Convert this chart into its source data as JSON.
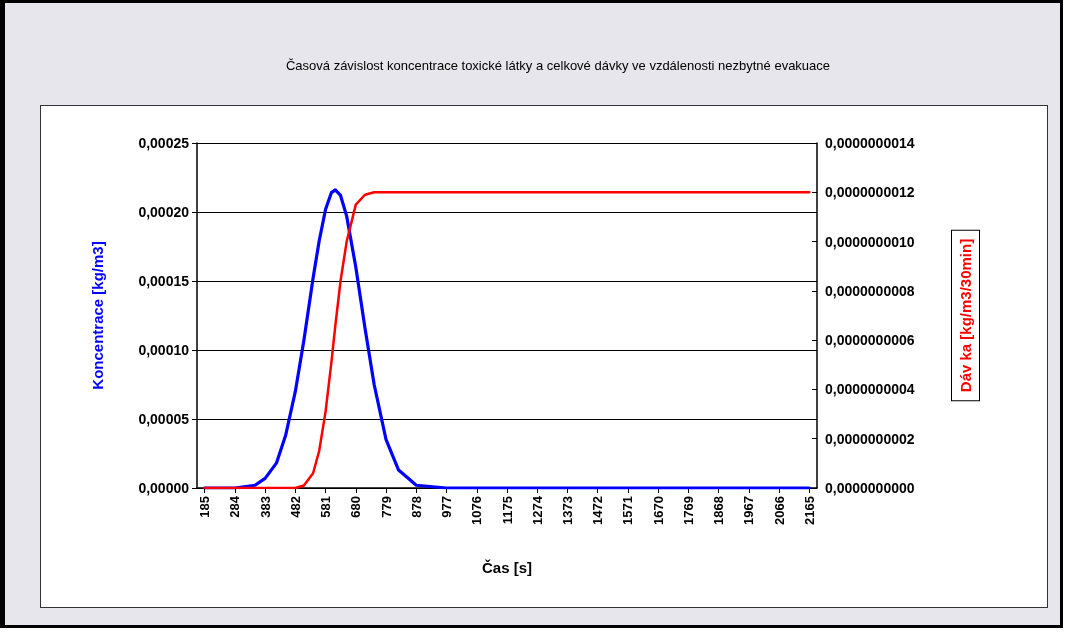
{
  "chart_data": {
    "type": "line",
    "title": "Časová závislost koncentrace toxické látky a celkové dávky ve vzdálenosti nezbytné evakuace",
    "xlabel": "Čas [s]",
    "ylabel": "Koncentrace [kg/m3]",
    "y2label": "Dáv ka [kg/m3/30min]",
    "x": [
      185,
      284,
      350,
      383,
      420,
      450,
      482,
      510,
      540,
      560,
      581,
      600,
      613,
      630,
      650,
      680,
      710,
      740,
      779,
      820,
      878,
      977,
      2165
    ],
    "series": [
      {
        "name": null,
        "color": "#0000ff",
        "values": [
          0,
          0,
          2e-06,
          7e-06,
          1.8e-05,
          3.8e-05,
          7e-05,
          0.000107,
          0.000152,
          0.000179,
          0.000202,
          0.000214,
          0.000216,
          0.000212,
          0.000197,
          0.00016,
          0.000116,
          7.5e-05,
          3.5e-05,
          1.3e-05,
          2e-06,
          0,
          0
        ]
      },
      {
        "name": null,
        "color": "#ff0000",
        "axis": "y2",
        "values": [
          0,
          0,
          0,
          0,
          0,
          0,
          0,
          1e-11,
          6e-11,
          1.5e-10,
          3.1e-10,
          5.1e-10,
          6.6e-10,
          8.4e-10,
          1e-09,
          1.15e-09,
          1.19e-09,
          1.2e-09,
          1.2e-09,
          1.2e-09,
          1.2e-09,
          1.2e-09,
          1.2e-09
        ]
      }
    ],
    "xlim": [
      160,
      2190
    ],
    "xticks": [
      185,
      284,
      383,
      482,
      581,
      680,
      779,
      878,
      977,
      1076,
      1175,
      1274,
      1373,
      1472,
      1571,
      1670,
      1769,
      1868,
      1967,
      2066,
      2165
    ],
    "ylim": [
      0,
      0.00025
    ],
    "yticks": [
      {
        "value": 0,
        "label": "0,00000"
      },
      {
        "value": 5e-05,
        "label": "0,00005"
      },
      {
        "value": 0.0001,
        "label": "0,00010"
      },
      {
        "value": 0.00015,
        "label": "0,00015"
      },
      {
        "value": 0.0002,
        "label": "0,00020"
      },
      {
        "value": 0.00025,
        "label": "0,00025"
      }
    ],
    "y2lim": [
      0,
      1.4e-09
    ],
    "y2ticks": [
      {
        "value": 0,
        "label": "0,0000000000"
      },
      {
        "value": 2e-10,
        "label": "0,0000000002"
      },
      {
        "value": 4e-10,
        "label": "0,0000000004"
      },
      {
        "value": 6e-10,
        "label": "0,0000000006"
      },
      {
        "value": 8e-10,
        "label": "0,0000000008"
      },
      {
        "value": 1e-09,
        "label": "0,0000000010"
      },
      {
        "value": 1.2e-09,
        "label": "0,0000000012"
      },
      {
        "value": 1.4e-09,
        "label": "0,0000000014"
      }
    ],
    "grid": "y",
    "marker": "none",
    "line_style": "solid"
  }
}
